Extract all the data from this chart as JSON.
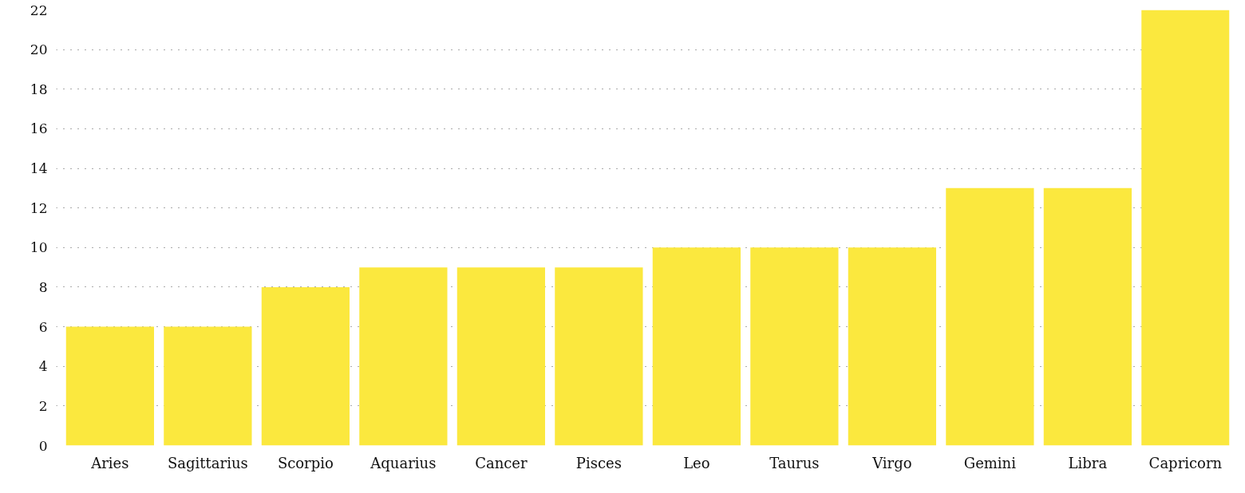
{
  "chart_data": {
    "type": "bar",
    "categories": [
      "Aries",
      "Sagittarius",
      "Scorpio",
      "Aquarius",
      "Cancer",
      "Pisces",
      "Leo",
      "Taurus",
      "Virgo",
      "Gemini",
      "Libra",
      "Capricorn"
    ],
    "values": [
      6,
      6,
      8,
      9,
      9,
      9,
      10,
      10,
      10,
      13,
      13,
      22
    ],
    "color": "#fbe83e",
    "ylim": [
      0,
      22
    ],
    "yticks": [
      0,
      2,
      4,
      6,
      8,
      10,
      12,
      14,
      16,
      18,
      20,
      22
    ],
    "grid": "y"
  }
}
